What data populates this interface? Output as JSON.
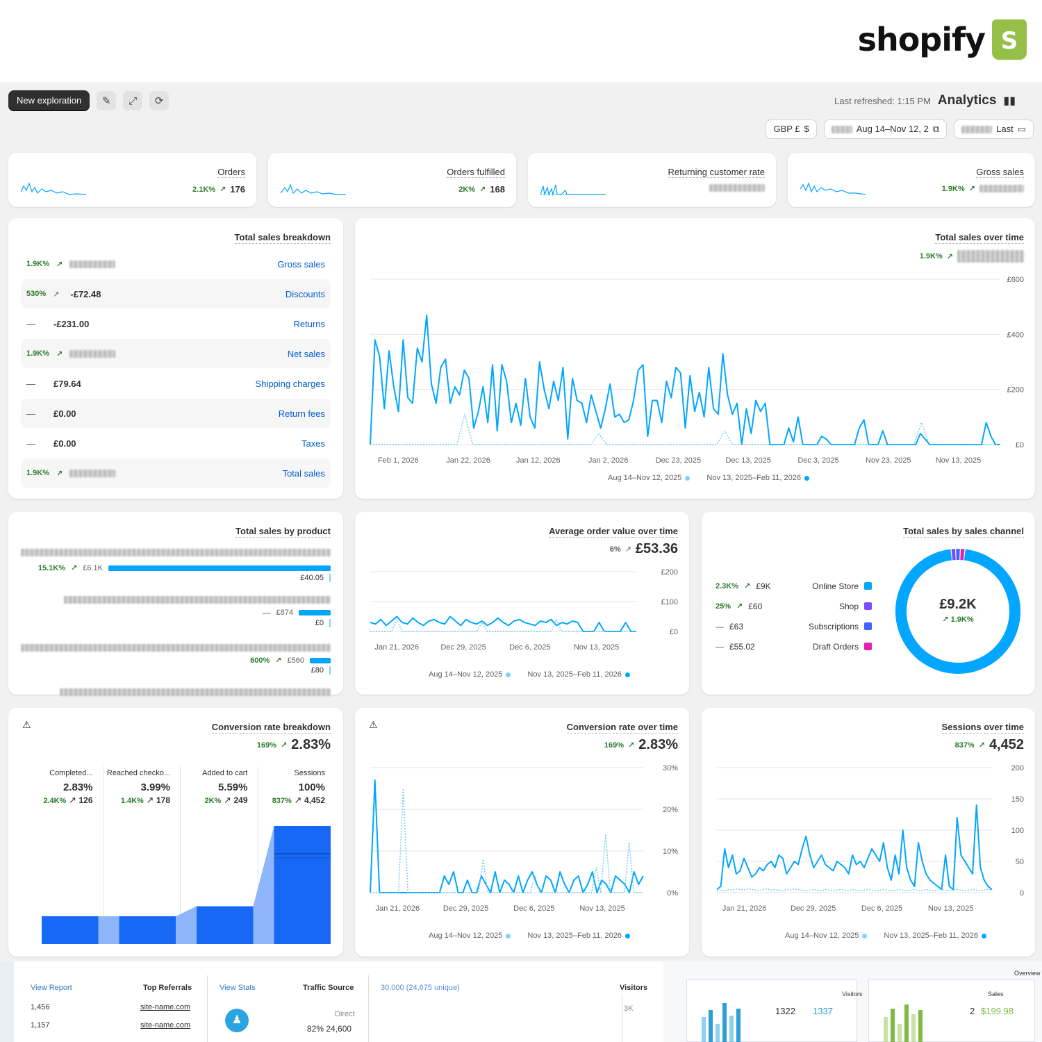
{
  "brand": {
    "name": "shopify"
  },
  "header": {
    "title": "Analytics",
    "refreshed": "Last refreshed: 1:15 PM",
    "new_exploration": "New exploration"
  },
  "filters": {
    "range_label": "Last",
    "dates": "Aug 14–Nov 12, 2",
    "currency": "GBP £"
  },
  "kpis": [
    {
      "title": "Gross sales",
      "value": "",
      "change": "1.9K%"
    },
    {
      "title": "Returning customer rate",
      "value": "",
      "change": ""
    },
    {
      "title": "Orders fulfilled",
      "value": "168",
      "change": "2K%"
    },
    {
      "title": "Orders",
      "value": "176",
      "change": "2.1K%"
    }
  ],
  "total_sales_over_time": {
    "title": "Total sales over time",
    "change": "1.9K%",
    "y_ticks": [
      "£600",
      "£400",
      "£200",
      "£0"
    ],
    "x_ticks": [
      "Nov 13, 2025",
      "Nov 23, 2025",
      "Dec 3, 2025",
      "Dec 13, 2025",
      "Dec 23, 2025",
      "Jan 2, 2026",
      "Jan 12, 2026",
      "Jan 22, 2026",
      "Feb 1, 2026"
    ],
    "legend": [
      "Nov 13, 2025–Feb 11, 2026",
      "Aug 14–Nov 12, 2025"
    ]
  },
  "breakdown": {
    "title": "Total sales breakdown",
    "rows": [
      {
        "label": "Gross sales",
        "value": "",
        "change": "1.9K%"
      },
      {
        "label": "Discounts",
        "value": "-£72.48",
        "change": "530%"
      },
      {
        "label": "Returns",
        "value": "-£231.00",
        "change": "—"
      },
      {
        "label": "Net sales",
        "value": "",
        "change": "1.9K%"
      },
      {
        "label": "Shipping charges",
        "value": "£79.64",
        "change": "—"
      },
      {
        "label": "Return fees",
        "value": "£0.00",
        "change": "—"
      },
      {
        "label": "Taxes",
        "value": "£0.00",
        "change": "—"
      },
      {
        "label": "Total sales",
        "value": "",
        "change": "1.9K%"
      }
    ]
  },
  "sales_channel": {
    "title": "Total sales by sales channel",
    "total": "£9.2K",
    "change": "1.9K%",
    "channels": [
      {
        "name": "Online Store",
        "value": "£9K",
        "change": "2.3K%",
        "color": "#00a6ff"
      },
      {
        "name": "Shop",
        "value": "£60",
        "change": "25%",
        "color": "#7a4bff"
      },
      {
        "name": "Subscriptions",
        "value": "£63",
        "change": "—",
        "color": "#3d64ff"
      },
      {
        "name": "Draft Orders",
        "value": "£55.02",
        "change": "—",
        "color": "#e51fb0"
      }
    ]
  },
  "aov": {
    "title": "Average order value over time",
    "value": "£53.36",
    "change": "6%",
    "y_ticks": [
      "£200",
      "£100",
      "£0"
    ],
    "x_ticks": [
      "Nov 13, 2025",
      "Dec 6, 2025",
      "Dec 29, 2025",
      "Jan 21, 2026"
    ],
    "legend": [
      "Nov 13, 2025–Feb 11, 2026",
      "Aug 14–Nov 12, 2025"
    ]
  },
  "by_product": {
    "title": "Total sales by product",
    "rows": [
      {
        "value": "£6.1K",
        "change": "15.1K%",
        "prev": "£40.05"
      },
      {
        "value": "£874",
        "change": "—",
        "prev": "£0"
      },
      {
        "value": "£560",
        "change": "600%",
        "prev": "£80"
      }
    ]
  },
  "sessions": {
    "title": "Sessions over time",
    "value": "4,452",
    "change": "837%",
    "y_ticks": [
      "200",
      "150",
      "100",
      "50",
      "0"
    ],
    "x_ticks": [
      "Nov 13, 2025",
      "Dec 6, 2025",
      "Dec 29, 2025",
      "Jan 21, 2026"
    ],
    "legend": [
      "Nov 13, 2025–Feb 11, 2026",
      "Aug 14–Nov 12, 2025"
    ]
  },
  "conv_time": {
    "title": "Conversion rate over time",
    "value": "2.83%",
    "change": "169%",
    "y_ticks": [
      "30%",
      "20%",
      "10%",
      "0%"
    ],
    "x_ticks": [
      "Nov 13, 2025",
      "Dec 6, 2025",
      "Dec 29, 2025",
      "Jan 21, 2026"
    ],
    "legend": [
      "Nov 13, 2025–Feb 11, 2026",
      "Aug 14–Nov 12, 2025"
    ]
  },
  "conv_breakdown": {
    "title": "Conversion rate breakdown",
    "value": "2.83%",
    "change": "169%",
    "steps": [
      {
        "label": "Sessions",
        "pct": "100%",
        "count": "4,452",
        "change": "837%"
      },
      {
        "label": "Added to cart",
        "pct": "5.59%",
        "count": "249",
        "change": "2K%"
      },
      {
        "label": "Reached checko...",
        "pct": "3.99%",
        "count": "178",
        "change": "1.4K%"
      },
      {
        "label": "Completed...",
        "pct": "2.83%",
        "count": "126",
        "change": "2.4K%"
      }
    ]
  },
  "chart_data": [
    {
      "type": "line",
      "title": "Total sales over time",
      "ylim": [
        0,
        600
      ],
      "series": [
        {
          "name": "Nov 13, 2025–Feb 11, 2026",
          "values": [
            0,
            380,
            320,
            130,
            340,
            210,
            120,
            380,
            170,
            150,
            350,
            300,
            470,
            220,
            150,
            280,
            310,
            150,
            210,
            180,
            270,
            240,
            60,
            120,
            210,
            80,
            290,
            50,
            290,
            230,
            80,
            150,
            70,
            240,
            100,
            60,
            300,
            200,
            130,
            230,
            160,
            280,
            20,
            240,
            160,
            150,
            80,
            180,
            120,
            60,
            130,
            220,
            100,
            110,
            80,
            90,
            160,
            270,
            290,
            30,
            160,
            160,
            80,
            230,
            170,
            280,
            260,
            60,
            250,
            120,
            190,
            100,
            280,
            130,
            110,
            330,
            180,
            110,
            150,
            0,
            130,
            40,
            160,
            120,
            150,
            0,
            0,
            0,
            0,
            60,
            10,
            100,
            0,
            0,
            0,
            0,
            30,
            20,
            0,
            0,
            0,
            0,
            0,
            0,
            60,
            90,
            0,
            0,
            0,
            50,
            0,
            0,
            0,
            0,
            0,
            0,
            0,
            40,
            20,
            0,
            0,
            0,
            0,
            0,
            0,
            0,
            0,
            0,
            0,
            0,
            0,
            80,
            30,
            0,
            0
          ]
        },
        {
          "name": "Aug 14–Nov 12, 2025",
          "values": [
            0,
            0,
            0,
            0,
            0,
            0,
            0,
            0,
            0,
            0,
            0,
            0,
            110,
            0,
            0,
            0,
            0,
            0,
            0,
            0,
            0,
            0,
            0,
            0,
            0,
            0,
            0,
            0,
            0,
            40,
            0,
            0,
            0,
            0,
            0,
            0,
            0,
            0,
            0,
            0,
            0,
            0,
            0,
            0,
            0,
            50,
            0,
            0,
            0,
            0,
            0,
            0,
            0,
            0,
            0,
            0,
            0,
            0,
            0,
            0,
            0,
            0,
            0,
            0,
            0,
            0,
            0,
            0,
            0,
            0,
            80,
            0,
            0,
            0,
            0,
            0,
            0,
            0,
            0,
            0,
            0
          ]
        }
      ]
    },
    {
      "type": "line",
      "title": "Average order value over time",
      "ylim": [
        0,
        200
      ],
      "series": [
        {
          "name": "Nov 13, 2025–Feb 11, 2026",
          "values": [
            30,
            25,
            40,
            20,
            35,
            50,
            30,
            25,
            45,
            30,
            20,
            35,
            40,
            30,
            25,
            50,
            35,
            20,
            40,
            30,
            25,
            35,
            20,
            30,
            45,
            30,
            20,
            35,
            40,
            30,
            25,
            20,
            35,
            30,
            40,
            20,
            30,
            25,
            35,
            30,
            0,
            0,
            0,
            30,
            0,
            0,
            0,
            0,
            30,
            0,
            0
          ]
        },
        {
          "name": "Aug 14–Nov 12, 2025",
          "values": [
            0,
            0,
            0,
            0,
            0,
            40,
            0,
            0,
            0,
            0,
            0,
            0,
            0,
            0,
            0,
            0,
            0,
            0,
            0,
            0,
            0,
            30,
            0,
            0,
            0,
            0,
            0,
            0,
            0,
            0,
            0,
            0,
            0,
            0,
            0,
            40,
            0,
            0,
            0,
            0,
            0,
            0,
            0,
            0,
            0,
            0,
            0,
            0,
            0,
            0,
            0
          ]
        }
      ]
    },
    {
      "type": "line",
      "title": "Sessions over time",
      "ylim": [
        0,
        200
      ],
      "series": [
        {
          "name": "Nov 13, 2025–Feb 11, 2026",
          "values": [
            5,
            10,
            70,
            40,
            60,
            30,
            35,
            55,
            40,
            25,
            30,
            40,
            35,
            45,
            50,
            40,
            60,
            55,
            30,
            40,
            50,
            45,
            70,
            90,
            60,
            40,
            50,
            60,
            45,
            40,
            35,
            50,
            45,
            40,
            30,
            60,
            45,
            50,
            40,
            55,
            70,
            60,
            50,
            80,
            40,
            20,
            60,
            30,
            100,
            40,
            20,
            10,
            80,
            50,
            30,
            20,
            15,
            10,
            5,
            60,
            10,
            5,
            120,
            60,
            50,
            40,
            30,
            140,
            40,
            20,
            10,
            5
          ]
        },
        {
          "name": "Aug 14–Nov 12, 2025",
          "values": [
            2,
            4,
            3,
            5,
            4,
            6,
            5,
            4,
            6,
            5,
            4,
            3,
            5,
            6,
            4,
            5,
            4,
            3,
            5,
            4,
            6,
            5,
            4,
            3,
            4,
            5,
            4,
            3,
            5,
            4,
            3,
            4,
            5,
            4,
            3,
            5,
            4,
            3,
            4,
            5,
            4,
            3,
            4,
            5,
            4,
            3,
            4,
            5,
            4,
            3,
            4,
            5,
            4,
            3,
            5,
            4,
            3,
            4,
            5,
            4,
            3,
            4,
            5,
            4,
            3,
            4,
            5,
            4,
            3,
            4,
            5,
            4
          ]
        }
      ]
    },
    {
      "type": "line",
      "title": "Conversion rate over time",
      "ylim": [
        0,
        30
      ],
      "series": [
        {
          "name": "Nov 13, 2025–Feb 11, 2026",
          "values": [
            0,
            27,
            0,
            0,
            0,
            0,
            0,
            0,
            0,
            0,
            0,
            0,
            0,
            0,
            0,
            0,
            4,
            2,
            5,
            0,
            0,
            3,
            0,
            0,
            4,
            2,
            0,
            5,
            0,
            3,
            2,
            0,
            4,
            0,
            3,
            5,
            2,
            0,
            4,
            3,
            0,
            5,
            2,
            0,
            3,
            4,
            0,
            2,
            5,
            0,
            3,
            2,
            0,
            4,
            3,
            2,
            0,
            5,
            2,
            4
          ]
        },
        {
          "name": "Aug 14–Nov 12, 2025",
          "values": [
            0,
            0,
            0,
            0,
            0,
            0,
            0,
            25,
            0,
            0,
            0,
            0,
            0,
            0,
            0,
            0,
            0,
            0,
            0,
            0,
            0,
            0,
            0,
            0,
            8,
            0,
            0,
            0,
            0,
            0,
            0,
            0,
            0,
            0,
            0,
            4,
            0,
            0,
            0,
            0,
            0,
            0,
            0,
            0,
            0,
            0,
            0,
            0,
            6,
            0,
            14,
            0,
            0,
            0,
            0,
            12,
            0,
            0,
            0
          ]
        }
      ]
    },
    {
      "type": "bar",
      "title": "Conversion rate breakdown",
      "categories": [
        "Sessions",
        "Added to cart",
        "Reached checkout",
        "Completed"
      ],
      "values": [
        100,
        5.59,
        3.99,
        2.83
      ]
    },
    {
      "type": "pie",
      "title": "Total sales by sales channel",
      "categories": [
        "Online Store",
        "Shop",
        "Subscriptions",
        "Draft Orders"
      ],
      "values": [
        9000,
        60,
        63,
        55.02
      ]
    }
  ],
  "bottom": {
    "visitors_title": "Visitors",
    "visitors_value": "30,000 (24,675 unique)",
    "axis": "3K",
    "traffic_title": "Traffic Source",
    "traffic_link": "View Stats",
    "traffic_label": "Direct",
    "traffic_value": "82% 24,600",
    "ref_title": "Top Referrals",
    "ref_link": "View Report",
    "referrals": [
      {
        "site": "site-name.com",
        "count": "1,456"
      },
      {
        "site": "site-name.com",
        "count": "1,157"
      }
    ],
    "overview": "Overview",
    "sales_label": "Sales",
    "sales_value": "$199.98",
    "sales_count": "2",
    "vis_label": "Visitors",
    "vis_a": "1337",
    "vis_b": "1322"
  }
}
